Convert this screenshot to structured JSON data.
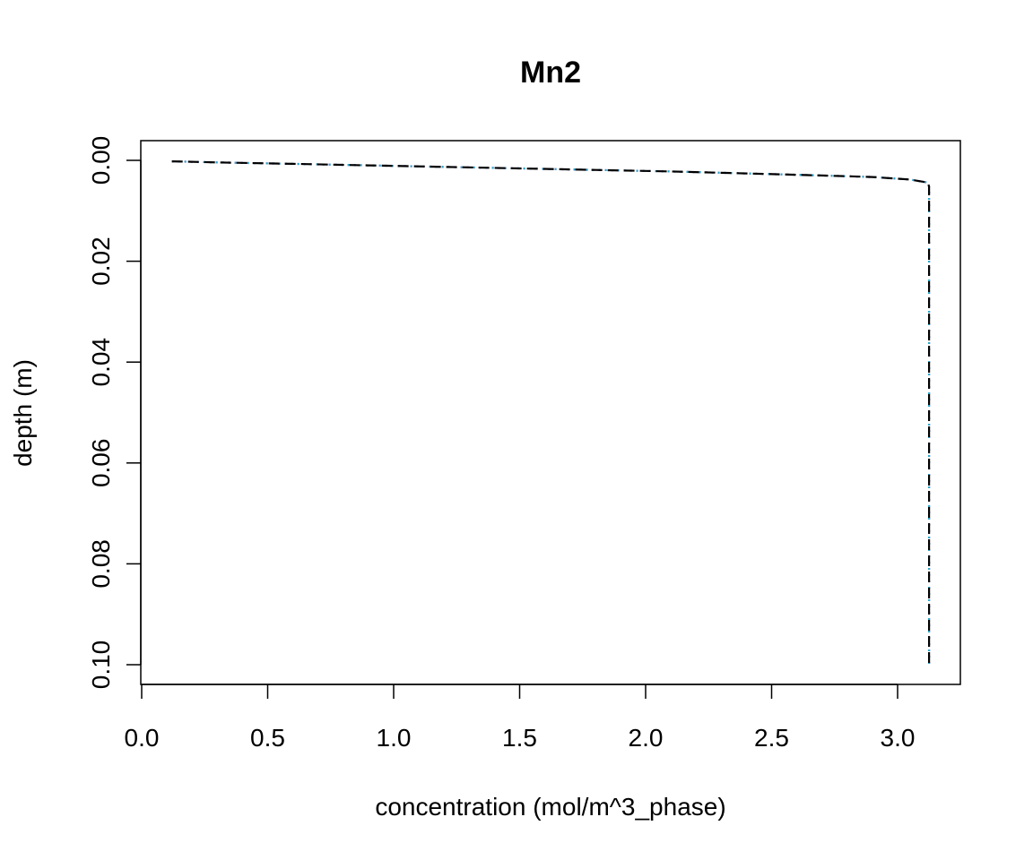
{
  "chart_data": {
    "type": "line",
    "title": "Mn2",
    "xlabel": "concentration (mol/m^3_phase)",
    "ylabel": "depth (m)",
    "xlim": [
      0,
      3.25
    ],
    "ylim": [
      0.1,
      0.0
    ],
    "y_reversed": true,
    "grid": false,
    "x_ticks": [
      0.0,
      0.5,
      1.0,
      1.5,
      2.0,
      2.5,
      3.0
    ],
    "x_tick_labels": [
      "0.0",
      "0.5",
      "1.0",
      "1.5",
      "2.0",
      "2.5",
      "3.0"
    ],
    "y_ticks": [
      0.0,
      0.02,
      0.04,
      0.06,
      0.08,
      0.1
    ],
    "y_tick_labels": [
      "0.00",
      "0.02",
      "0.04",
      "0.06",
      "0.08",
      "0.10"
    ],
    "series": [
      {
        "color": "#000000",
        "dash": "dashed",
        "x": [
          0.12,
          0.3,
          0.6,
          0.9,
          1.2,
          1.5,
          1.8,
          2.1,
          2.4,
          2.7,
          2.9,
          3.05,
          3.12,
          3.125,
          3.125,
          3.125,
          3.125
        ],
        "y": [
          0.0002,
          0.0004,
          0.0007,
          0.001,
          0.0013,
          0.0016,
          0.0019,
          0.0022,
          0.0026,
          0.003,
          0.0033,
          0.0038,
          0.0044,
          0.0052,
          0.02,
          0.06,
          0.1
        ]
      },
      {
        "color": "#22aacc",
        "dash": "dotted",
        "x": [
          0.12,
          0.3,
          0.6,
          0.9,
          1.2,
          1.5,
          1.8,
          2.1,
          2.4,
          2.7,
          2.9,
          3.05,
          3.12,
          3.125,
          3.125,
          3.125,
          3.125
        ],
        "y": [
          0.0002,
          0.0004,
          0.0007,
          0.001,
          0.0013,
          0.0016,
          0.0019,
          0.0022,
          0.0026,
          0.003,
          0.0033,
          0.0038,
          0.0044,
          0.0052,
          0.02,
          0.06,
          0.1
        ]
      },
      {
        "color": "#cc33cc",
        "dash": "dotted",
        "x": [
          0.12,
          0.3,
          0.6,
          0.9,
          1.2,
          1.5,
          1.8,
          2.1,
          2.4,
          2.7,
          2.9,
          3.05,
          3.12,
          3.125,
          3.125,
          3.125,
          3.125
        ],
        "y": [
          0.0002,
          0.0004,
          0.0007,
          0.001,
          0.0013,
          0.0016,
          0.0019,
          0.0022,
          0.0026,
          0.003,
          0.0033,
          0.0038,
          0.0044,
          0.0052,
          0.02,
          0.06,
          0.1
        ]
      }
    ]
  }
}
